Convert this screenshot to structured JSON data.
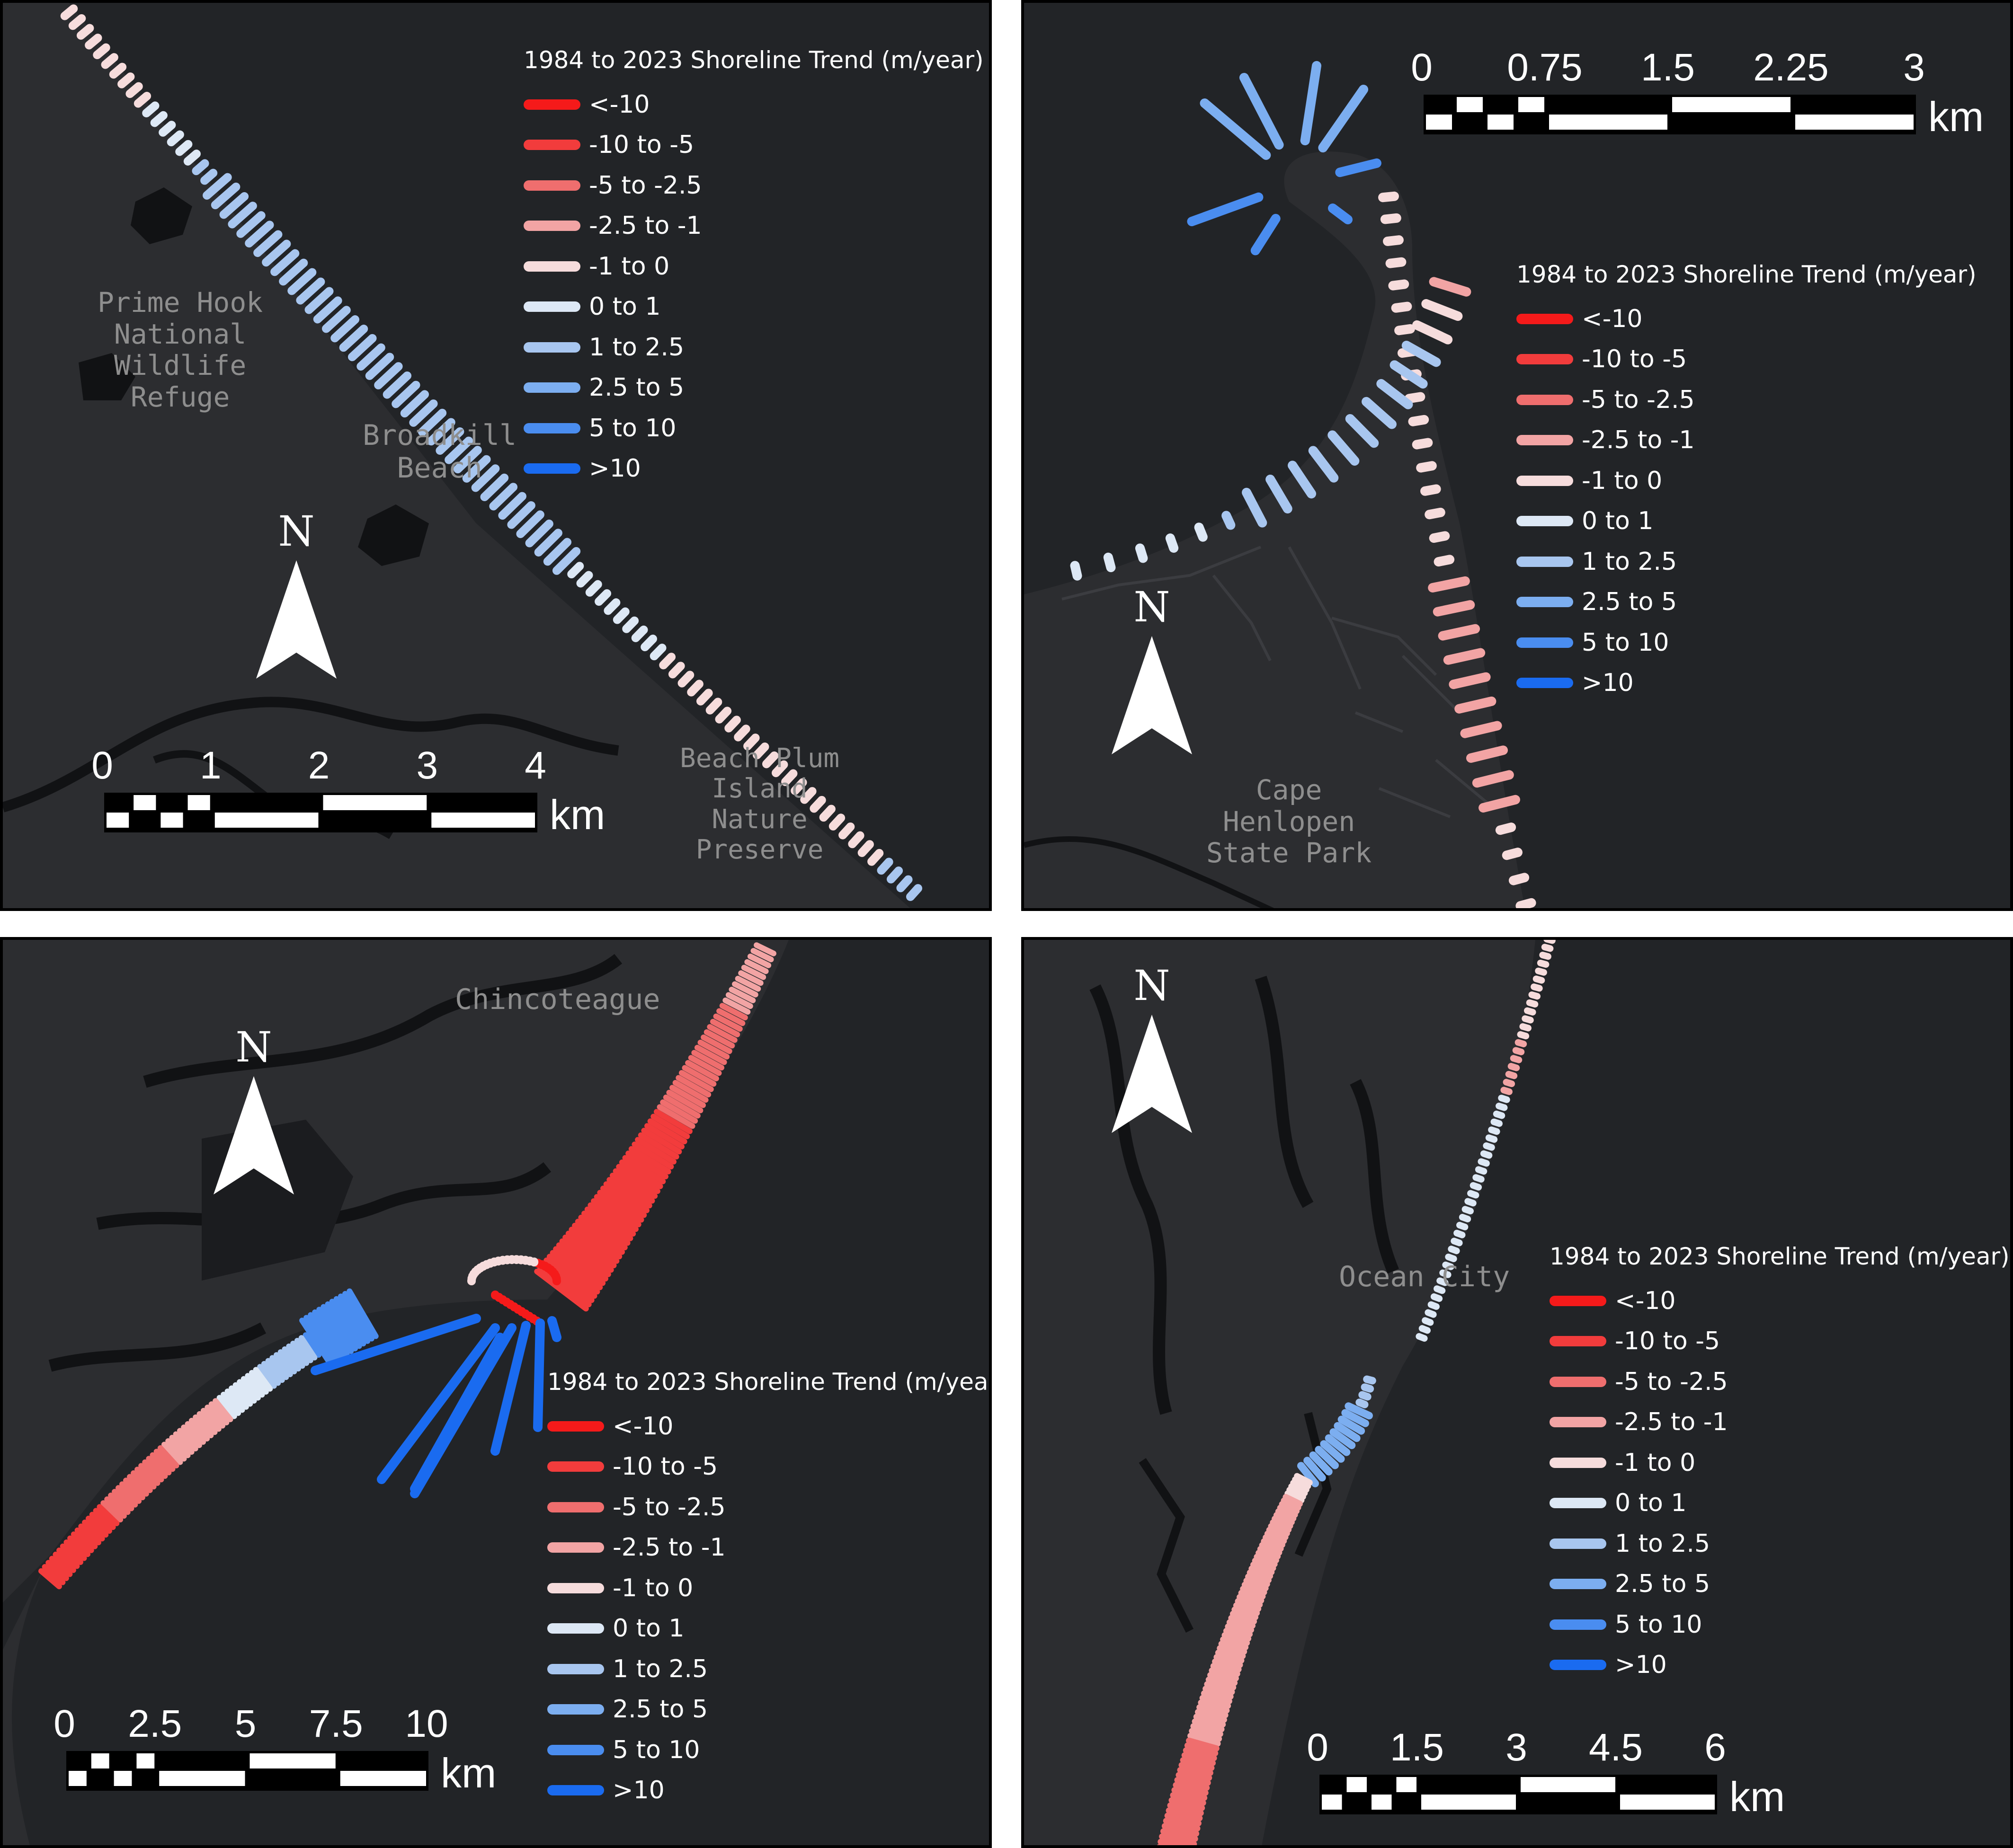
{
  "legend": {
    "title": "1984 to 2023 Shoreline Trend (m/year)",
    "items": [
      {
        "label": "<-10",
        "color": "#f51a1a"
      },
      {
        "label": "-10 to -5",
        "color": "#f23c3c"
      },
      {
        "label": "-5 to -2.5",
        "color": "#ef6e6e"
      },
      {
        "label": "-2.5 to -1",
        "color": "#f2a4a4"
      },
      {
        "label": "-1 to 0",
        "color": "#f6dcdc"
      },
      {
        "label": "0 to 1",
        "color": "#dde8f5"
      },
      {
        "label": "1 to 2.5",
        "color": "#a8c6ef"
      },
      {
        "label": "2.5 to 5",
        "color": "#7caef0"
      },
      {
        "label": "5 to 10",
        "color": "#4a8df0"
      },
      {
        "label": ">10",
        "color": "#1a6bf0"
      }
    ]
  },
  "north_label": "N",
  "panels": {
    "top_left": {
      "places": [
        {
          "lines": [
            "Prime Hook",
            "National",
            "Wildlife",
            "Refuge"
          ]
        },
        {
          "lines": [
            "Broadkill",
            "Beach"
          ]
        },
        {
          "lines": [
            "Beach Plum",
            "Island",
            "Nature",
            "Preserve"
          ]
        }
      ],
      "scale": {
        "ticks": [
          "0",
          "1",
          "2",
          "3",
          "4"
        ],
        "unit": "km"
      }
    },
    "top_right": {
      "places": [
        {
          "lines": [
            "Cape",
            "Henlopen",
            "State Park"
          ]
        }
      ],
      "scale": {
        "ticks": [
          "0",
          "0.75",
          "1.5",
          "2.25",
          "3"
        ],
        "unit": "km"
      }
    },
    "bottom_left": {
      "places": [
        {
          "lines": [
            "Chincoteague"
          ]
        }
      ],
      "scale": {
        "ticks": [
          "0",
          "2.5",
          "5",
          "7.5",
          "10"
        ],
        "unit": "km"
      }
    },
    "bottom_right": {
      "places": [
        {
          "lines": [
            "Ocean City"
          ]
        }
      ],
      "scale": {
        "ticks": [
          "0",
          "1.5",
          "3",
          "4.5",
          "6"
        ],
        "unit": "km"
      }
    }
  }
}
